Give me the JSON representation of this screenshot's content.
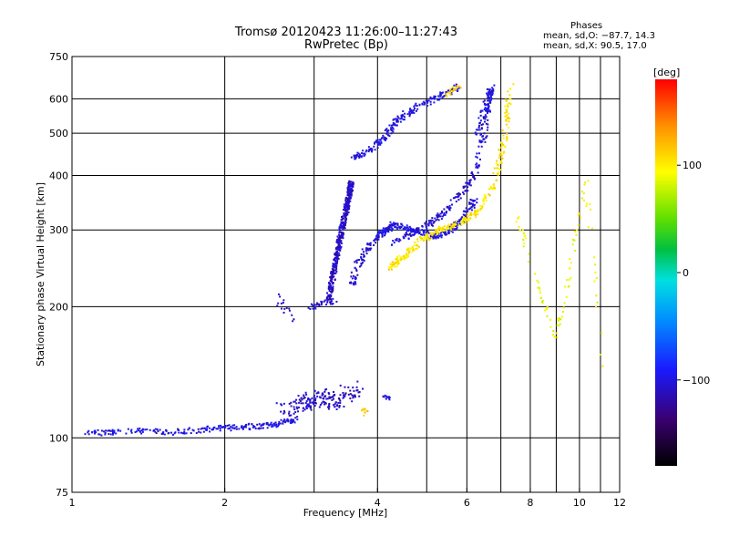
{
  "title": {
    "main": "Tromsø 20120423 11:26:00–11:27:43",
    "sub": "RwPretec (Bp)"
  },
  "phases": {
    "head": "Phases",
    "line1": "mean, sd,O: −87.7, 14.3",
    "line2": "mean, sd,X:  90.5, 17.0"
  },
  "colorbar": {
    "label": "[deg]",
    "ticks": [
      "100",
      "0",
      "−100"
    ],
    "tick_values": [
      100,
      0,
      -100
    ],
    "range": [
      -180,
      180
    ]
  },
  "chart_data": {
    "type": "scatter",
    "title": "Tromsø 20120423 11:26:00–11:27:43",
    "subtitle": "RwPretec (Bp)",
    "xlabel": "Frequency [MHz]",
    "ylabel": "Stationary phase Virtual Height [km]",
    "xscale": "log",
    "yscale": "log",
    "xlim": [
      1,
      12
    ],
    "ylim": [
      75,
      750
    ],
    "x_ticks": [
      1,
      2,
      4,
      6,
      8,
      10,
      12
    ],
    "x_tick_labels": [
      "1",
      "2",
      "4",
      "6",
      "8",
      "10",
      "12"
    ],
    "x_minor": [
      3,
      5,
      7,
      9,
      11
    ],
    "y_ticks": [
      75,
      100,
      200,
      300,
      400,
      500,
      600,
      750
    ],
    "y_tick_labels": [
      "75",
      "100",
      "200",
      "300",
      "400",
      "500",
      "600",
      "750"
    ],
    "grid": true,
    "color_by": "phase [deg]",
    "groups": [
      {
        "kind": "trace",
        "phase": -100,
        "jitter": 0.015,
        "density": 40,
        "x": [
          1.05,
          1.3,
          1.6,
          1.9,
          2.2,
          2.5,
          2.75
        ],
        "y": [
          102,
          104,
          103,
          105,
          106,
          107,
          110
        ]
      },
      {
        "kind": "trace",
        "phase": -110,
        "jitter": 0.02,
        "density": 8,
        "x": [
          2.55,
          2.6,
          2.75
        ],
        "y": [
          210,
          200,
          188
        ]
      },
      {
        "kind": "trace",
        "phase": -105,
        "jitter": 0.015,
        "density": 10,
        "x": [
          2.95,
          3.05,
          3.15,
          3.3
        ],
        "y": [
          200,
          202,
          204,
          206
        ]
      },
      {
        "kind": "column",
        "phase": -110,
        "jitter": 0.012,
        "density": 110,
        "x": [
          3.2,
          3.3,
          3.4,
          3.5,
          3.55
        ],
        "y": [
          205,
          250,
          300,
          350,
          385
        ]
      },
      {
        "kind": "trace",
        "phase": -105,
        "jitter": 0.015,
        "density": 25,
        "x": [
          3.55,
          3.65,
          3.8,
          4.0,
          4.3
        ],
        "y": [
          220,
          250,
          270,
          290,
          310
        ]
      },
      {
        "kind": "trace",
        "phase": -100,
        "jitter": 0.015,
        "density": 40,
        "x": [
          4.0,
          4.3,
          4.7,
          5.2,
          5.6,
          5.9,
          6.2
        ],
        "y": [
          290,
          308,
          300,
          290,
          300,
          320,
          350
        ]
      },
      {
        "kind": "trace",
        "phase": -100,
        "jitter": 0.015,
        "density": 35,
        "x": [
          3.6,
          3.9,
          4.2,
          4.4,
          4.8,
          5.3,
          5.8
        ],
        "y": [
          440,
          460,
          500,
          540,
          575,
          610,
          640
        ]
      },
      {
        "kind": "trace",
        "phase": -105,
        "jitter": 0.015,
        "density": 35,
        "x": [
          4.3,
          4.8,
          5.3,
          5.8,
          6.2,
          6.5,
          6.7
        ],
        "y": [
          280,
          300,
          320,
          360,
          400,
          500,
          640
        ]
      },
      {
        "kind": "trace",
        "phase": -100,
        "jitter": 0.015,
        "density": 25,
        "x": [
          6.3,
          6.5,
          6.6,
          6.7
        ],
        "y": [
          500,
          560,
          600,
          630
        ]
      },
      {
        "kind": "trace",
        "phase": 105,
        "jitter": 0.015,
        "density": 40,
        "x": [
          4.2,
          4.5,
          4.9,
          5.3,
          5.8,
          6.3,
          6.8,
          7.1,
          7.3
        ],
        "y": [
          245,
          260,
          285,
          300,
          310,
          330,
          380,
          480,
          640
        ]
      },
      {
        "kind": "trace",
        "phase": 110,
        "jitter": 0.012,
        "density": 10,
        "x": [
          5.4,
          5.6,
          5.8
        ],
        "y": [
          610,
          630,
          640
        ]
      },
      {
        "kind": "cluster",
        "phase": -110,
        "jitter": 0.04,
        "density": 45,
        "x": [
          2.6,
          2.9,
          3.1,
          3.3,
          3.6
        ],
        "y": [
          115,
          120,
          125,
          120,
          130
        ]
      },
      {
        "kind": "cluster",
        "phase": 115,
        "jitter": 0.02,
        "density": 10,
        "x": [
          3.7,
          3.8
        ],
        "y": [
          114,
          118
        ]
      },
      {
        "kind": "scatter",
        "phase": -95,
        "jitter": 0.01,
        "density": 6,
        "x": [
          4.1,
          4.2,
          4.3
        ],
        "y": [
          124,
          123,
          124
        ]
      },
      {
        "kind": "scatter",
        "phase": 90,
        "jitter": 0.01,
        "density": 20,
        "x": [
          7.5,
          8.3,
          9.0,
          9.5,
          10.3,
          11.2
        ],
        "y": [
          330,
          220,
          170,
          230,
          390,
          140
        ]
      }
    ]
  }
}
